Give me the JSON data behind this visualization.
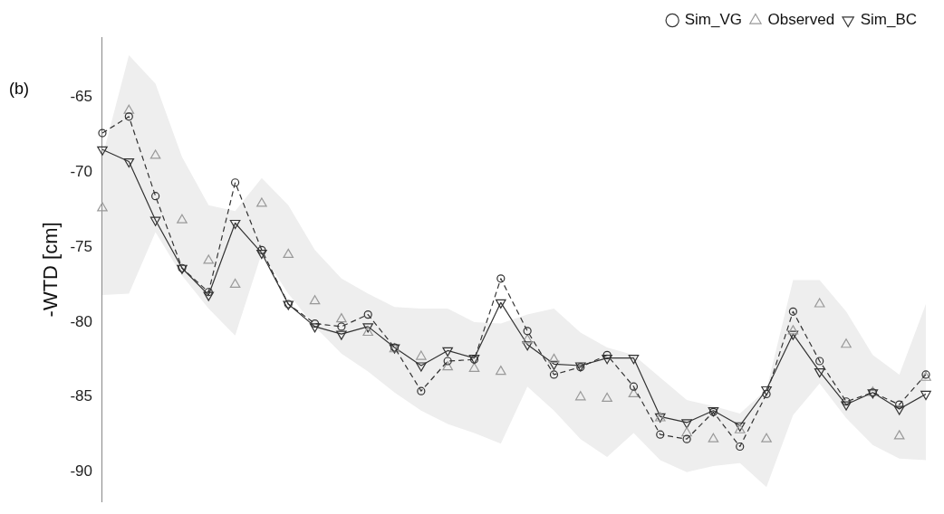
{
  "chart_data": {
    "type": "line",
    "ylabel": "-WTD [cm]",
    "annotations": [
      "(b)"
    ],
    "categories": [
      null,
      null,
      null,
      null,
      null,
      null,
      null,
      null,
      null,
      null,
      null,
      null,
      null,
      null,
      null,
      null,
      null,
      null,
      null,
      null,
      null,
      null,
      null,
      null,
      null,
      null,
      null,
      null,
      null,
      null,
      null,
      null
    ],
    "series": [
      {
        "name": "Sim_VG",
        "type": "line",
        "color": "#333333",
        "marker": "circle",
        "line_style": "dashed",
        "values": [
          -67.4,
          -66.3,
          -71.6,
          -76.4,
          -78.0,
          -70.7,
          -75.2,
          -78.8,
          -80.1,
          -80.3,
          -79.5,
          -81.7,
          -84.6,
          -82.6,
          -82.5,
          -77.1,
          -80.6,
          -83.5,
          -83.0,
          -82.2,
          -84.3,
          -87.5,
          -87.8,
          -86.0,
          -88.3,
          -84.8,
          -79.3,
          -82.6,
          -85.3,
          -84.7,
          -85.5,
          -83.5
        ],
        "upper": [
          -69.0,
          -62.2,
          -64.1,
          -69.0,
          -72.2,
          -72.6,
          -70.4,
          -72.2,
          -75.2,
          -77.1,
          -78.1,
          -79.0,
          -79.1,
          -79.1,
          -80.0,
          -80.1,
          -79.5,
          -79.1,
          -80.7,
          -81.7,
          -82.2,
          -83.7,
          -85.2,
          -85.6,
          -86.1,
          -84.5,
          -77.2,
          -77.2,
          -79.3,
          -82.2,
          -83.5,
          -78.8
        ],
        "lower": [
          -78.2,
          -78.1,
          -74.0,
          -76.9,
          -79.1,
          -80.9,
          -75.4,
          -78.1,
          -80.3,
          -82.1,
          -83.3,
          -84.7,
          -85.9,
          -86.8,
          -87.4,
          -88.1,
          -84.3,
          -85.9,
          -87.8,
          -89.0,
          -87.4,
          -89.2,
          -90.0,
          -89.6,
          -89.4,
          -91.0,
          -86.2,
          -84.1,
          -86.4,
          -88.2,
          -89.1,
          -89.2
        ]
      },
      {
        "name": "Observed",
        "type": "scatter",
        "color": "#999999",
        "marker": "triangle",
        "values": [
          -72.4,
          -65.9,
          -68.9,
          -73.2,
          -75.9,
          -77.5,
          -72.1,
          -75.5,
          -78.6,
          -79.8,
          -80.7,
          -81.8,
          -82.3,
          -83.0,
          -83.1,
          -83.3,
          -81.2,
          -82.5,
          -85.0,
          -85.1,
          -84.8,
          -86.4,
          -87.4,
          -87.8,
          -87.2,
          -87.8,
          -80.6,
          -78.8,
          -81.5,
          -84.7,
          -87.6,
          -83.7
        ]
      },
      {
        "name": "Sim_BC",
        "type": "line",
        "color": "#333333",
        "marker": "triangle-down",
        "line_style": "solid",
        "values": [
          -68.5,
          -69.3,
          -73.2,
          -76.4,
          -78.2,
          -73.4,
          -75.4,
          -78.8,
          -80.3,
          -80.8,
          -80.3,
          -81.7,
          -82.9,
          -81.9,
          -82.4,
          -78.7,
          -81.5,
          -82.8,
          -82.9,
          -82.4,
          -82.4,
          -86.3,
          -86.7,
          -85.9,
          -86.9,
          -84.5,
          -80.8,
          -83.3,
          -85.5,
          -84.7,
          -85.8,
          -84.8
        ]
      }
    ],
    "ylim": [
      -92,
      -61
    ],
    "yticks": [
      -90,
      -85,
      -80,
      -75,
      -70,
      -65
    ],
    "grid": false,
    "legend": "top right",
    "tick_labels": "y"
  }
}
